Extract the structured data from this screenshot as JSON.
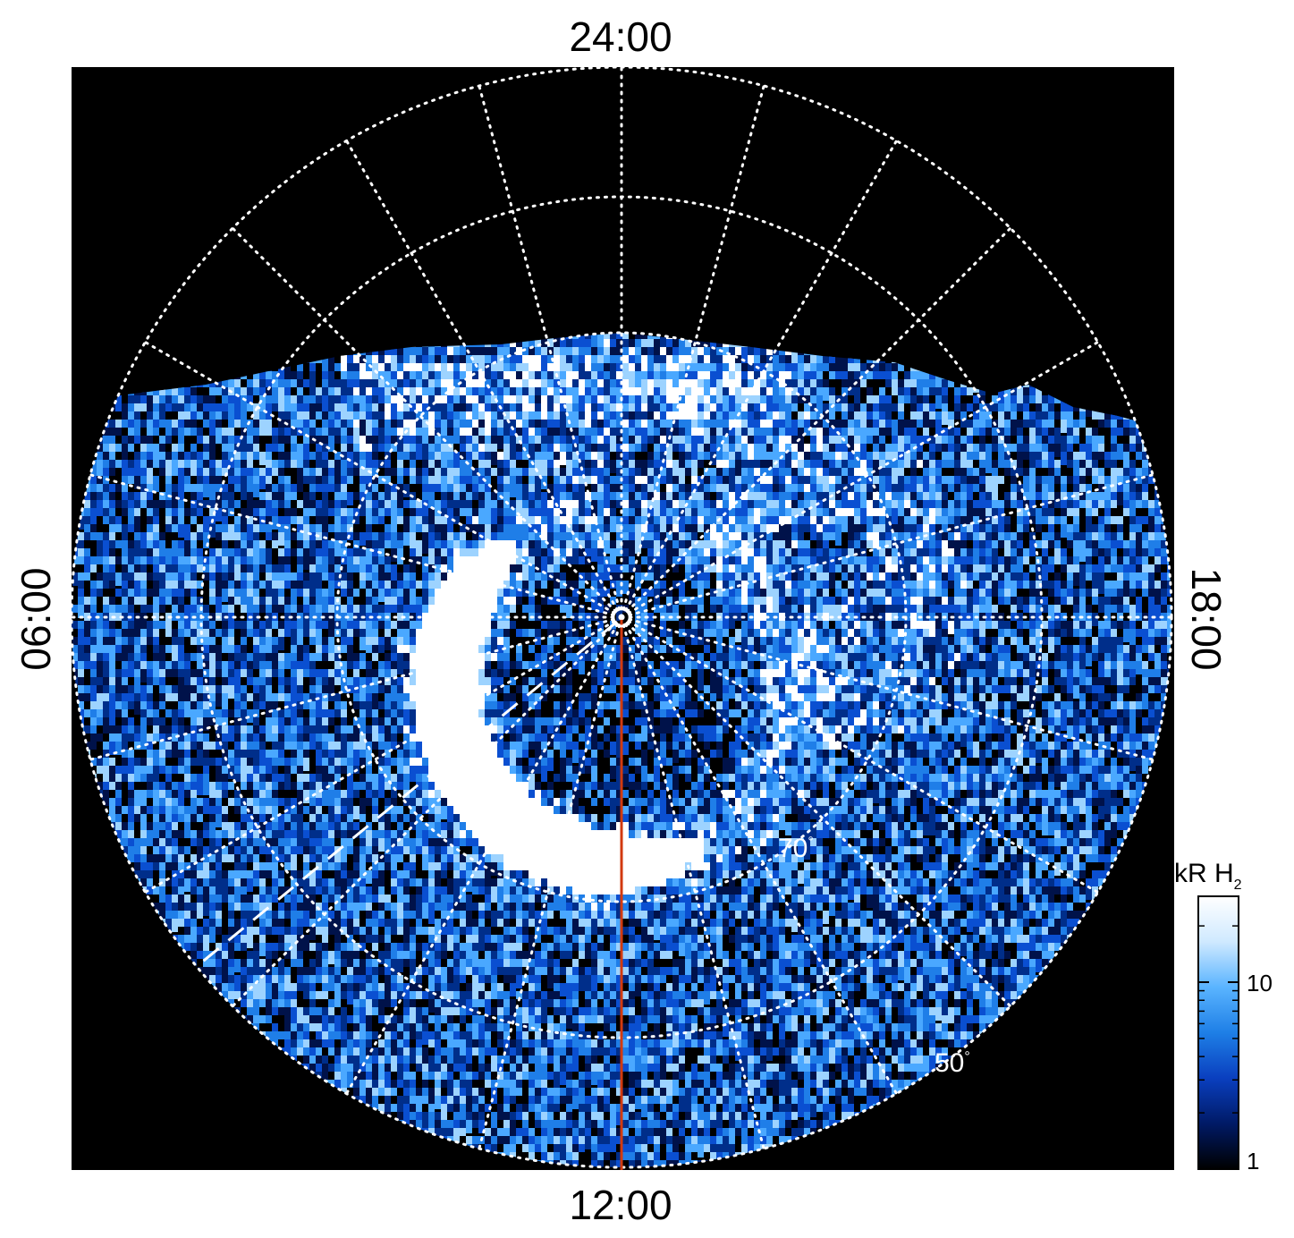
{
  "figure": {
    "lt_labels": {
      "top": "24:00",
      "bottom": "12:00",
      "left": "06:00",
      "right": "18:00"
    },
    "latitude_labels": [
      {
        "text": "70",
        "degree": "°"
      },
      {
        "text": "50",
        "degree": "°"
      }
    ],
    "colorbar": {
      "title_main": "kR H",
      "title_sub": "2",
      "ticks": [
        "10",
        "1"
      ],
      "scale": "log",
      "range": [
        1,
        30
      ],
      "colors": [
        "#000000",
        "#001a66",
        "#0a3fbf",
        "#1e7fe6",
        "#5ab4ff",
        "#cfe9ff",
        "#ffffff"
      ]
    },
    "colors": {
      "background": "#000000",
      "grid": "#ffffff",
      "meridian_line": "#d23a0f",
      "pole_marker": "#ffffff",
      "dashed_line": "#ffffff"
    }
  }
}
